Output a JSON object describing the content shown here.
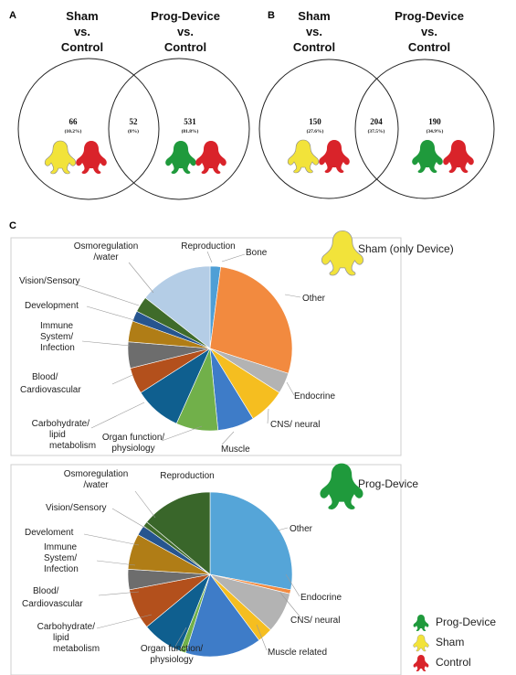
{
  "panels": {
    "a": "A",
    "b": "B",
    "c": "C"
  },
  "venn_a": {
    "left_title": [
      "Sham",
      "vs.",
      "Control"
    ],
    "right_title": [
      "Prog-Device",
      "vs.",
      "Control"
    ],
    "left": {
      "count": "66",
      "pct": "(10.2%)"
    },
    "overlap": {
      "count": "52",
      "pct": "(8%)"
    },
    "right": {
      "count": "531",
      "pct": "(81.8%)"
    }
  },
  "venn_b": {
    "left_title": [
      "Sham",
      "vs.",
      "Control"
    ],
    "right_title": [
      "Prog-Device",
      "vs.",
      "Control"
    ],
    "left": {
      "count": "150",
      "pct": "(27.6%)"
    },
    "overlap": {
      "count": "204",
      "pct": "(37.5%)"
    },
    "right": {
      "count": "190",
      "pct": "(34.9%)"
    }
  },
  "legend": [
    {
      "label": "Prog-Device",
      "color": "#1f9a3c"
    },
    {
      "label": "Sham",
      "color": "#f2e33a"
    },
    {
      "label": "Control",
      "color": "#d9232a"
    }
  ],
  "chart_data": [
    {
      "type": "pie",
      "title": "Sham (only Device)",
      "slices": [
        {
          "label": "Bone",
          "value": 2,
          "color": "#4f9fd6"
        },
        {
          "label": "Other",
          "value": 27,
          "color": "#f28a3f"
        },
        {
          "label": "Endocrine",
          "value": 4,
          "color": "#b3b3b3"
        },
        {
          "label": "CNS/ neural",
          "value": 7,
          "color": "#f5be20"
        },
        {
          "label": "Muscle",
          "value": 7,
          "color": "#3e7cc8"
        },
        {
          "label": "Organ function/ physiology",
          "value": 8,
          "color": "#71b04a"
        },
        {
          "label": "Carbohydrate/ lipid metabolism",
          "value": 9,
          "color": "#0f5f8f"
        },
        {
          "label": "Blood/ Cardiovascular",
          "value": 5,
          "color": "#b3501c"
        },
        {
          "label": "Immune System/ Infection",
          "value": 5,
          "color": "#6d6d6d"
        },
        {
          "label": "Development",
          "value": 4,
          "color": "#b07d16"
        },
        {
          "label": "Vision/Sensory",
          "value": 2,
          "color": "#26558f"
        },
        {
          "label": "Osmoregulation /water",
          "value": 3,
          "color": "#3f6b2a"
        },
        {
          "label": "Reproduction",
          "value": 14,
          "color": "#b4cde6"
        }
      ]
    },
    {
      "type": "pie",
      "title": "Prog-Device",
      "slices": [
        {
          "label": "Other",
          "value": 28,
          "color": "#55a5d8"
        },
        {
          "label": "Endocrine",
          "value": 0.8,
          "color": "#f28a3f"
        },
        {
          "label": "CNS/ neural",
          "value": 8,
          "color": "#b3b3b3"
        },
        {
          "label": "Muscle related",
          "value": 3,
          "color": "#f5be20"
        },
        {
          "label": "Organ function/ physiology",
          "value": 15,
          "color": "#3e7cc8"
        },
        {
          "label": "Organ function/ physiology",
          "value": 1.2,
          "color": "#71b04a"
        },
        {
          "label": "Carbohydrate/ lipid metabolism",
          "value": 8,
          "color": "#0f5f8f"
        },
        {
          "label": "Blood/ Cardiovascular",
          "value": 8,
          "color": "#b3501c"
        },
        {
          "label": "Immune System/ Infection",
          "value": 4,
          "color": "#6d6d6d"
        },
        {
          "label": "Develoment",
          "value": 7,
          "color": "#b07d16"
        },
        {
          "label": "Vision/Sensory",
          "value": 2,
          "color": "#26558f"
        },
        {
          "label": "Osmoregulation /water",
          "value": 1,
          "color": "#3f6b2a"
        },
        {
          "label": "Reproduction",
          "value": 14,
          "color": "#39662a"
        }
      ]
    }
  ],
  "pie1_labels": {
    "reproduction": "Reproduction",
    "bone": "Bone",
    "other": "Other",
    "endocrine": "Endocrine",
    "cns": "CNS/ neural",
    "muscle": "Muscle",
    "organ": [
      "Organ function/",
      "physiology"
    ],
    "carb": [
      "Carbohydrate/",
      "lipid",
      "metabolism"
    ],
    "blood": [
      "Blood/",
      "Cardiovascular"
    ],
    "immune": [
      "Immune",
      "System/",
      "Infection"
    ],
    "development": "Development",
    "vision": "Vision/Sensory",
    "osmo": [
      "Osmoregulation",
      "/water"
    ]
  },
  "pie2_labels": {
    "reproduction": "Reproduction",
    "other": "Other",
    "endocrine": "Endocrine",
    "cns": "CNS/ neural",
    "muscle": "Muscle related",
    "organ": [
      "Organ function/",
      "physiology"
    ],
    "carb": [
      "Carbohydrate/",
      "lipid",
      "metabolism"
    ],
    "blood": [
      "Blood/",
      "Cardiovascular"
    ],
    "immune": [
      "Immune",
      "System/",
      "Infection"
    ],
    "development": "Develoment",
    "vision": "Vision/Sensory",
    "osmo": [
      "Osmoregulation",
      "/water"
    ]
  }
}
